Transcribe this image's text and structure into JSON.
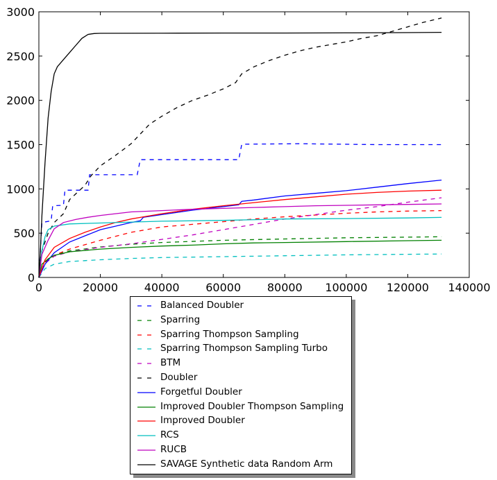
{
  "chart_data": {
    "type": "line",
    "title": "",
    "xlabel": "",
    "ylabel": "",
    "xlim": [
      0,
      140000
    ],
    "ylim": [
      0,
      3000
    ],
    "x_ticks": [
      0,
      20000,
      40000,
      60000,
      80000,
      100000,
      120000,
      140000
    ],
    "y_ticks": [
      0,
      500,
      1000,
      1500,
      2000,
      2500,
      3000
    ],
    "grid": false,
    "legend_position": "below",
    "series": [
      {
        "name": "Balanced Doubler",
        "color": "#0000ff",
        "style": "dashed",
        "points": [
          [
            0,
            0
          ],
          [
            1000,
            620
          ],
          [
            4000,
            640
          ],
          [
            4500,
            810
          ],
          [
            8000,
            815
          ],
          [
            8500,
            985
          ],
          [
            16000,
            985
          ],
          [
            16500,
            1160
          ],
          [
            32000,
            1160
          ],
          [
            33000,
            1330
          ],
          [
            65000,
            1330
          ],
          [
            66000,
            1505
          ],
          [
            85000,
            1510
          ],
          [
            110000,
            1500
          ],
          [
            131000,
            1500
          ]
        ]
      },
      {
        "name": "Sparring",
        "color": "#008000",
        "style": "dashed",
        "points": [
          [
            0,
            0
          ],
          [
            2000,
            180
          ],
          [
            5000,
            250
          ],
          [
            10000,
            300
          ],
          [
            20000,
            345
          ],
          [
            30000,
            375
          ],
          [
            40000,
            395
          ],
          [
            60000,
            420
          ],
          [
            80000,
            435
          ],
          [
            100000,
            448
          ],
          [
            120000,
            455
          ],
          [
            131000,
            460
          ]
        ]
      },
      {
        "name": "Sparring Thompson Sampling",
        "color": "#ff0000",
        "style": "dashed",
        "points": [
          [
            0,
            0
          ],
          [
            2000,
            170
          ],
          [
            5000,
            250
          ],
          [
            10000,
            320
          ],
          [
            20000,
            420
          ],
          [
            30000,
            510
          ],
          [
            40000,
            570
          ],
          [
            50000,
            600
          ],
          [
            60000,
            630
          ],
          [
            70000,
            660
          ],
          [
            80000,
            685
          ],
          [
            90000,
            705
          ],
          [
            100000,
            725
          ],
          [
            110000,
            740
          ],
          [
            120000,
            750
          ],
          [
            131000,
            755
          ]
        ]
      },
      {
        "name": "Sparring Thompson Sampling Turbo",
        "color": "#00bfbf",
        "style": "dashed",
        "points": [
          [
            0,
            0
          ],
          [
            2000,
            100
          ],
          [
            5000,
            150
          ],
          [
            10000,
            180
          ],
          [
            20000,
            200
          ],
          [
            30000,
            215
          ],
          [
            40000,
            225
          ],
          [
            60000,
            235
          ],
          [
            80000,
            245
          ],
          [
            100000,
            255
          ],
          [
            120000,
            262
          ],
          [
            131000,
            265
          ]
        ]
      },
      {
        "name": "BTM",
        "color": "#bf00bf",
        "style": "dashed",
        "points": [
          [
            0,
            0
          ],
          [
            2000,
            160
          ],
          [
            5000,
            240
          ],
          [
            10000,
            290
          ],
          [
            20000,
            340
          ],
          [
            30000,
            380
          ],
          [
            40000,
            430
          ],
          [
            50000,
            480
          ],
          [
            60000,
            540
          ],
          [
            70000,
            600
          ],
          [
            80000,
            660
          ],
          [
            90000,
            710
          ],
          [
            100000,
            760
          ],
          [
            110000,
            800
          ],
          [
            120000,
            850
          ],
          [
            131000,
            900
          ]
        ]
      },
      {
        "name": "Doubler",
        "color": "#000000",
        "style": "dashed",
        "points": [
          [
            0,
            0
          ],
          [
            1000,
            300
          ],
          [
            3000,
            500
          ],
          [
            5000,
            620
          ],
          [
            8000,
            720
          ],
          [
            10000,
            880
          ],
          [
            15000,
            1040
          ],
          [
            17000,
            1150
          ],
          [
            20000,
            1260
          ],
          [
            25000,
            1380
          ],
          [
            30000,
            1510
          ],
          [
            33000,
            1620
          ],
          [
            36000,
            1730
          ],
          [
            40000,
            1820
          ],
          [
            45000,
            1920
          ],
          [
            50000,
            2000
          ],
          [
            55000,
            2060
          ],
          [
            60000,
            2130
          ],
          [
            64000,
            2200
          ],
          [
            66000,
            2300
          ],
          [
            70000,
            2380
          ],
          [
            75000,
            2450
          ],
          [
            80000,
            2510
          ],
          [
            85000,
            2560
          ],
          [
            90000,
            2600
          ],
          [
            95000,
            2630
          ],
          [
            100000,
            2660
          ],
          [
            105000,
            2700
          ],
          [
            110000,
            2730
          ],
          [
            115000,
            2780
          ],
          [
            120000,
            2830
          ],
          [
            125000,
            2880
          ],
          [
            131000,
            2930
          ]
        ]
      },
      {
        "name": "Forgetful Doubler",
        "color": "#0000ff",
        "style": "solid",
        "points": [
          [
            0,
            0
          ],
          [
            2000,
            150
          ],
          [
            5000,
            280
          ],
          [
            10000,
            400
          ],
          [
            15000,
            470
          ],
          [
            20000,
            540
          ],
          [
            25000,
            580
          ],
          [
            30000,
            620
          ],
          [
            33000,
            640
          ],
          [
            34000,
            680
          ],
          [
            40000,
            710
          ],
          [
            50000,
            760
          ],
          [
            60000,
            800
          ],
          [
            65000,
            820
          ],
          [
            66000,
            860
          ],
          [
            70000,
            875
          ],
          [
            80000,
            920
          ],
          [
            90000,
            950
          ],
          [
            100000,
            980
          ],
          [
            110000,
            1020
          ],
          [
            120000,
            1060
          ],
          [
            131000,
            1100
          ]
        ]
      },
      {
        "name": "Improved Doubler Thompson Sampling",
        "color": "#008000",
        "style": "solid",
        "points": [
          [
            0,
            0
          ],
          [
            1000,
            150
          ],
          [
            3000,
            210
          ],
          [
            5000,
            250
          ],
          [
            10000,
            290
          ],
          [
            20000,
            320
          ],
          [
            30000,
            340
          ],
          [
            40000,
            355
          ],
          [
            50000,
            365
          ],
          [
            60000,
            380
          ],
          [
            70000,
            390
          ],
          [
            80000,
            395
          ],
          [
            100000,
            405
          ],
          [
            120000,
            415
          ],
          [
            131000,
            420
          ]
        ]
      },
      {
        "name": "Improved Doubler",
        "color": "#ff0000",
        "style": "solid",
        "points": [
          [
            0,
            0
          ],
          [
            2000,
            200
          ],
          [
            5000,
            340
          ],
          [
            10000,
            440
          ],
          [
            15000,
            510
          ],
          [
            20000,
            570
          ],
          [
            25000,
            620
          ],
          [
            30000,
            660
          ],
          [
            35000,
            690
          ],
          [
            40000,
            720
          ],
          [
            50000,
            770
          ],
          [
            60000,
            810
          ],
          [
            70000,
            845
          ],
          [
            80000,
            880
          ],
          [
            90000,
            910
          ],
          [
            100000,
            940
          ],
          [
            110000,
            960
          ],
          [
            120000,
            975
          ],
          [
            131000,
            985
          ]
        ]
      },
      {
        "name": "RCS",
        "color": "#00bfbf",
        "style": "solid",
        "points": [
          [
            0,
            0
          ],
          [
            1000,
            300
          ],
          [
            2000,
            460
          ],
          [
            3000,
            540
          ],
          [
            5000,
            580
          ],
          [
            10000,
            605
          ],
          [
            20000,
            615
          ],
          [
            40000,
            635
          ],
          [
            60000,
            645
          ],
          [
            80000,
            660
          ],
          [
            100000,
            665
          ],
          [
            120000,
            672
          ],
          [
            131000,
            678
          ]
        ]
      },
      {
        "name": "RUCB",
        "color": "#bf00bf",
        "style": "solid",
        "points": [
          [
            0,
            0
          ],
          [
            1000,
            260
          ],
          [
            3000,
            420
          ],
          [
            5000,
            550
          ],
          [
            8000,
            620
          ],
          [
            12000,
            655
          ],
          [
            16000,
            680
          ],
          [
            20000,
            700
          ],
          [
            30000,
            740
          ],
          [
            40000,
            755
          ],
          [
            50000,
            770
          ],
          [
            60000,
            780
          ],
          [
            70000,
            790
          ],
          [
            80000,
            800
          ],
          [
            90000,
            810
          ],
          [
            100000,
            815
          ],
          [
            110000,
            820
          ],
          [
            120000,
            825
          ],
          [
            131000,
            830
          ]
        ]
      },
      {
        "name": "SAVAGE Synthetic data Random Arm",
        "color": "#000000",
        "style": "solid",
        "points": [
          [
            0,
            0
          ],
          [
            500,
            300
          ],
          [
            1000,
            700
          ],
          [
            2000,
            1300
          ],
          [
            3000,
            1800
          ],
          [
            4000,
            2100
          ],
          [
            5000,
            2300
          ],
          [
            6000,
            2380
          ],
          [
            8000,
            2460
          ],
          [
            10000,
            2540
          ],
          [
            12000,
            2620
          ],
          [
            14000,
            2700
          ],
          [
            16000,
            2745
          ],
          [
            18000,
            2755
          ],
          [
            20000,
            2757
          ],
          [
            40000,
            2758
          ],
          [
            60000,
            2760
          ],
          [
            80000,
            2760
          ],
          [
            100000,
            2762
          ],
          [
            120000,
            2765
          ],
          [
            131000,
            2768
          ]
        ]
      }
    ]
  }
}
